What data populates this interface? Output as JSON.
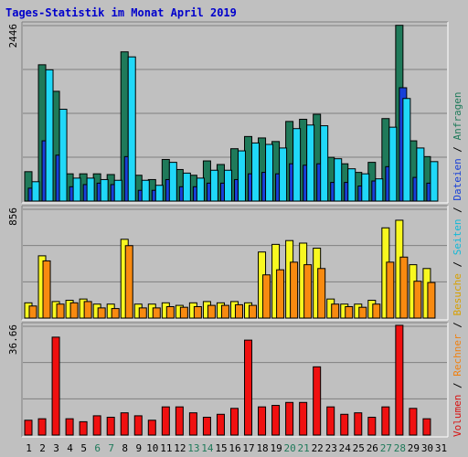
{
  "chart_data": {
    "type": "bar",
    "title": "Tages-Statistik im Monat April 2019",
    "categories": [
      "1",
      "2",
      "3",
      "4",
      "5",
      "6",
      "7",
      "8",
      "9",
      "10",
      "11",
      "12",
      "13",
      "14",
      "15",
      "16",
      "17",
      "18",
      "19",
      "20",
      "21",
      "22",
      "23",
      "24",
      "25",
      "26",
      "27",
      "28",
      "29",
      "30",
      "31"
    ],
    "weekend_days": [
      "6",
      "7",
      "13",
      "14",
      "20",
      "21",
      "27",
      "28"
    ],
    "colors": {
      "anfragen": "#1f7a5a",
      "dateien": "#1840d8",
      "seiten": "#20d8f8",
      "besuche": "#f8f820",
      "rechner": "#f88a10",
      "volumen": "#f01010",
      "title": "#0000cc",
      "weekend": "#1f7a5a",
      "weekday": "#000000"
    },
    "panels": [
      {
        "id": "requests",
        "max_label": "2446",
        "ylim": [
          0,
          2446
        ],
        "series": [
          {
            "name": "Anfragen",
            "values": [
              410,
              1900,
              1530,
              380,
              380,
              380,
              370,
              2080,
              360,
              300,
              580,
              440,
              360,
              560,
              510,
              730,
              900,
              880,
              830,
              1110,
              1140,
              1210,
              610,
              520,
              400,
              540,
              1150,
              2450,
              840,
              620,
              0
            ]
          },
          {
            "name": "Dateien",
            "values": [
              180,
              840,
              640,
              200,
              230,
              250,
              230,
              620,
              150,
              150,
              300,
              200,
              200,
              250,
              250,
              300,
              380,
              400,
              380,
              520,
              500,
              520,
              260,
              260,
              210,
              280,
              480,
              1580,
              330,
              250,
              0
            ]
          },
          {
            "name": "Seiten",
            "values": [
              270,
              1830,
              1280,
              320,
              320,
              300,
              290,
              2010,
              290,
              220,
              540,
              390,
              320,
              430,
              430,
              700,
              810,
              790,
              740,
              1010,
              1060,
              1050,
              590,
              450,
              380,
              310,
              1030,
              1430,
              740,
              550,
              0
            ]
          }
        ]
      },
      {
        "id": "visits",
        "max_label": "856",
        "ylim": [
          0,
          856
        ],
        "series": [
          {
            "name": "Besuche",
            "values": [
              120,
              490,
              130,
              140,
              150,
              110,
              110,
              620,
              110,
              110,
              120,
              100,
              120,
              130,
              120,
              130,
              120,
              520,
              580,
              610,
              590,
              550,
              150,
              110,
              110,
              140,
              710,
              770,
              420,
              390,
              0
            ]
          },
          {
            "name": "Rechner",
            "values": [
              95,
              450,
              110,
              120,
              130,
              80,
              75,
              570,
              80,
              80,
              90,
              85,
              90,
              100,
              100,
              105,
              100,
              340,
              380,
              440,
              420,
              390,
              110,
              90,
              85,
              110,
              440,
              480,
              290,
              280,
              0
            ]
          }
        ]
      },
      {
        "id": "volume",
        "max_label": "36.66",
        "ylim": [
          0,
          36.66
        ],
        "series": [
          {
            "name": "Volumen",
            "values": [
              5,
              5.5,
              33,
              5.5,
              4.5,
              6.5,
              6,
              7.5,
              6.5,
              5,
              9.5,
              9.5,
              7.5,
              6,
              7,
              9,
              32,
              9.5,
              10,
              11,
              11,
              23,
              9.5,
              7,
              7.5,
              6,
              9.5,
              37,
              9,
              5.5,
              0
            ]
          }
        ]
      }
    ],
    "side_label": {
      "parts": [
        {
          "text": "Volumen",
          "color": "#d81010"
        },
        {
          "text": " / ",
          "color": "#000000"
        },
        {
          "text": "Rechner",
          "color": "#f08010"
        },
        {
          "text": " / ",
          "color": "#000000"
        },
        {
          "text": "Besuche",
          "color": "#d8a000"
        },
        {
          "text": " / ",
          "color": "#000000"
        },
        {
          "text": "Seiten",
          "color": "#10b8d8"
        },
        {
          "text": " / ",
          "color": "#000000"
        },
        {
          "text": "Dateien",
          "color": "#1840d8"
        },
        {
          "text": " / ",
          "color": "#000000"
        },
        {
          "text": "Anfragen",
          "color": "#1f7a5a"
        }
      ]
    }
  }
}
